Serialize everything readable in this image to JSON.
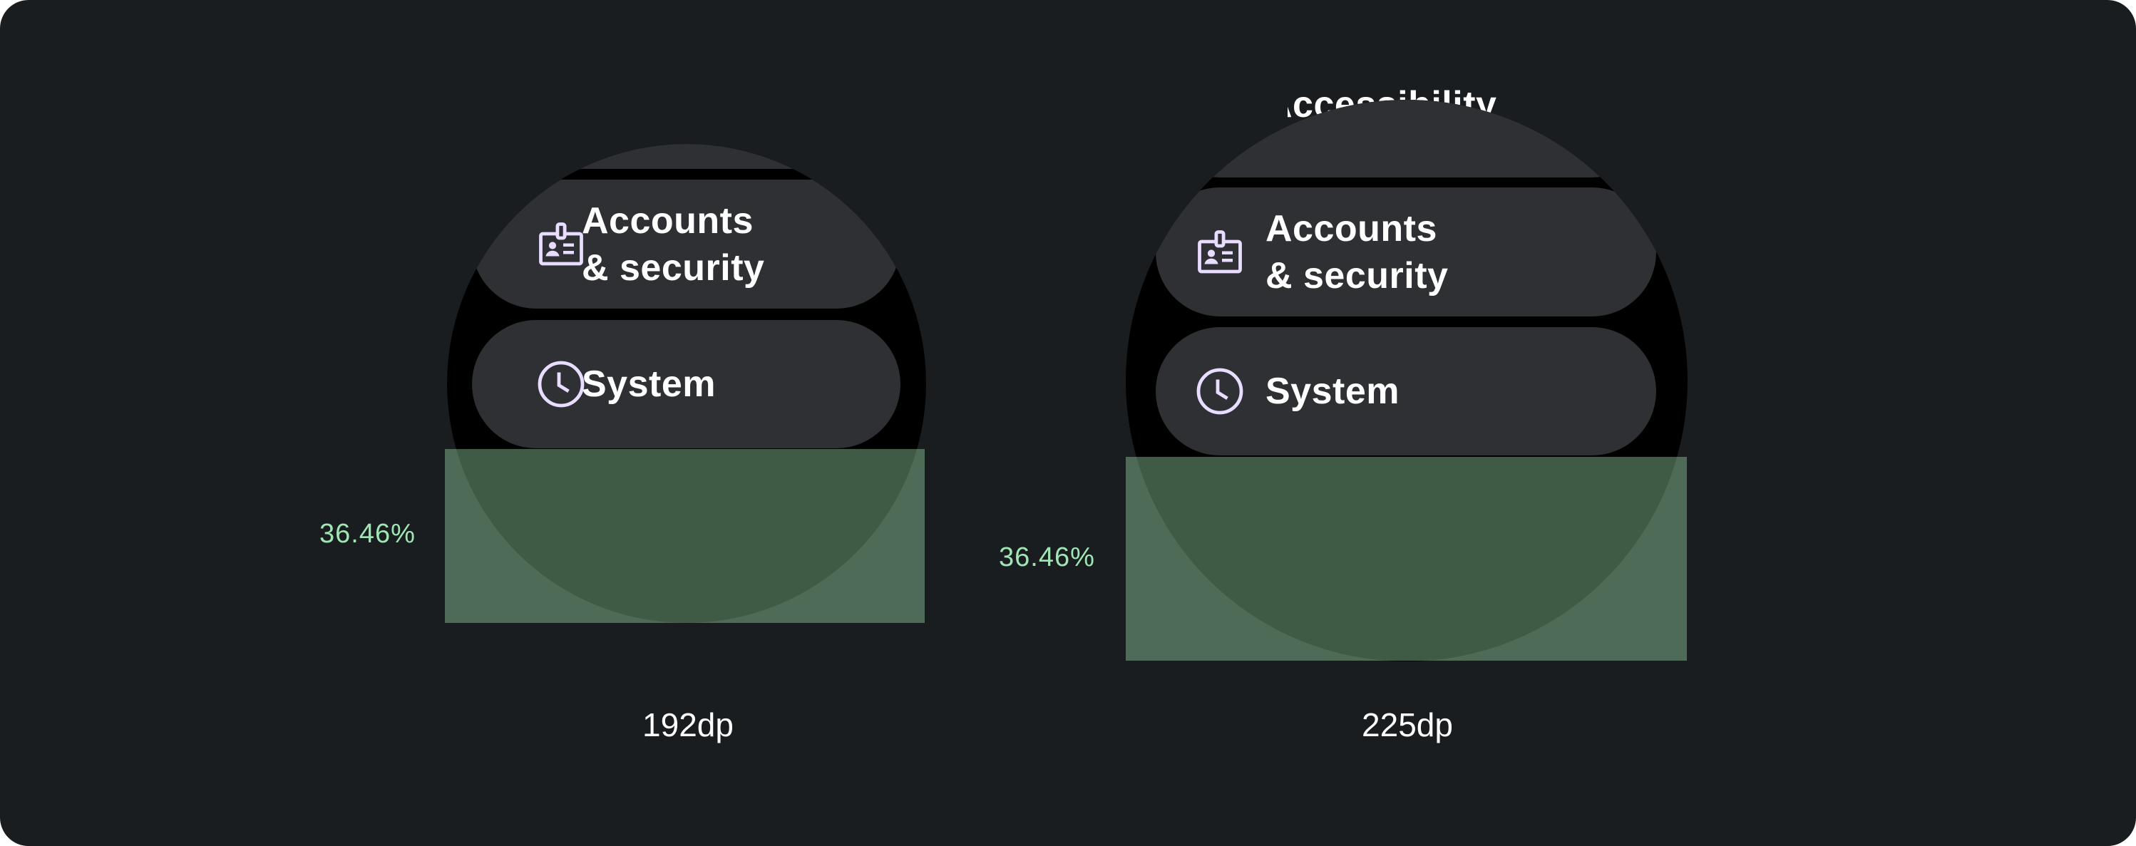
{
  "colors": {
    "background": "#1a1d20",
    "watch": "#000000",
    "pill": "#2f3033",
    "icon": "#e8dcff",
    "overlay": "#97d9a8",
    "percent_text": "#a0e6b4"
  },
  "left": {
    "size_label": "192dp",
    "overlay_percent": "36.46%",
    "items": [
      {
        "label": "Accounts\n& security",
        "icon": "badge-icon"
      },
      {
        "label": "System",
        "icon": "clock-icon"
      }
    ]
  },
  "right": {
    "size_label": "225dp",
    "overlay_percent": "36.46%",
    "partial_item": "Accessibility",
    "items": [
      {
        "label": "Accounts\n& security",
        "icon": "badge-icon"
      },
      {
        "label": "System",
        "icon": "clock-icon"
      }
    ]
  }
}
